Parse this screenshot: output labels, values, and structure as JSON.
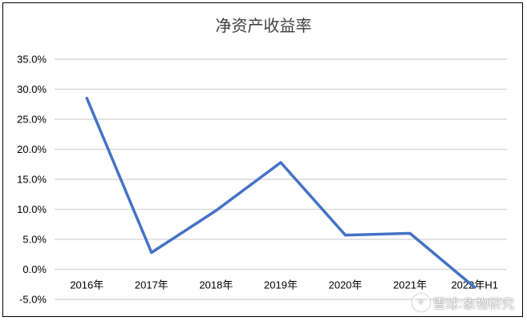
{
  "chart_data": {
    "type": "line",
    "title": "净资产收益率",
    "categories": [
      "2016年",
      "2017年",
      "2018年",
      "2019年",
      "2020年",
      "2021年",
      "2022年H1"
    ],
    "series": [
      {
        "values": [
          28.5,
          2.8,
          9.8,
          17.8,
          5.7,
          6.0,
          -3.0
        ]
      }
    ],
    "ylim": [
      -5,
      35
    ],
    "yticks": [
      35,
      30,
      25,
      20,
      15,
      10,
      5,
      0,
      -5
    ],
    "ytick_labels": [
      "35.0%",
      "30.0%",
      "25.0%",
      "20.0%",
      "15.0%",
      "10.0%",
      "5.0%",
      "0.0%",
      "-5.0%"
    ],
    "grid": true,
    "legend": "none",
    "line_color": "#4472C4",
    "grid_color": "#D9D9D9"
  },
  "watermark": {
    "brand": "雪球",
    "separator": ":",
    "author": "象物研究",
    "icon": "snowball-logo-icon"
  }
}
